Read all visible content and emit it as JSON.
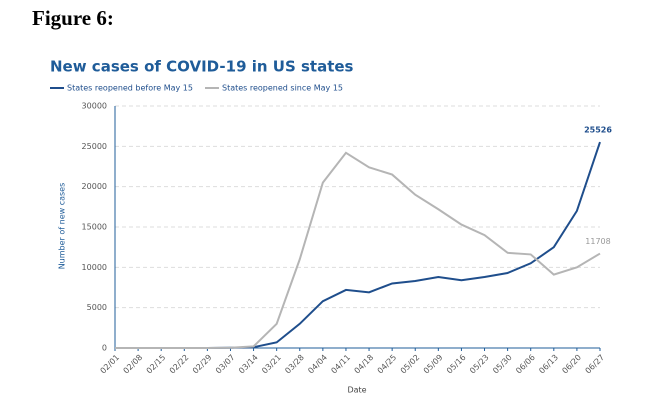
{
  "heading": "Figure 6:",
  "chart_data": {
    "type": "line",
    "title": "New cases of COVID-19 in US states",
    "xlabel": "Date",
    "ylabel": "Number of new cases",
    "categories": [
      "02/01",
      "02/08",
      "02/15",
      "02/22",
      "02/29",
      "03/07",
      "03/14",
      "03/21",
      "03/28",
      "04/04",
      "04/11",
      "04/18",
      "04/25",
      "05/02",
      "05/09",
      "05/16",
      "05/23",
      "05/30",
      "06/06",
      "06/13",
      "06/20",
      "06/27"
    ],
    "series": [
      {
        "name": "States reopened before May 15",
        "color": "#1f4e8c",
        "values": [
          0,
          0,
          0,
          0,
          0,
          30,
          100,
          700,
          3000,
          5800,
          7200,
          6900,
          8000,
          8300,
          8800,
          8400,
          8800,
          9300,
          10500,
          12500,
          17000,
          25526
        ]
      },
      {
        "name": "States reopened since May 15",
        "color": "#b5b5b5",
        "values": [
          0,
          0,
          0,
          0,
          0,
          30,
          200,
          3000,
          11000,
          20500,
          24200,
          22400,
          21500,
          19000,
          17200,
          15300,
          14000,
          11800,
          11600,
          9100,
          10000,
          11708
        ]
      }
    ],
    "ylim": [
      0,
      30000
    ],
    "yticks": [
      0,
      5000,
      10000,
      15000,
      20000,
      25000,
      30000
    ],
    "grid": true,
    "legend": "top"
  }
}
